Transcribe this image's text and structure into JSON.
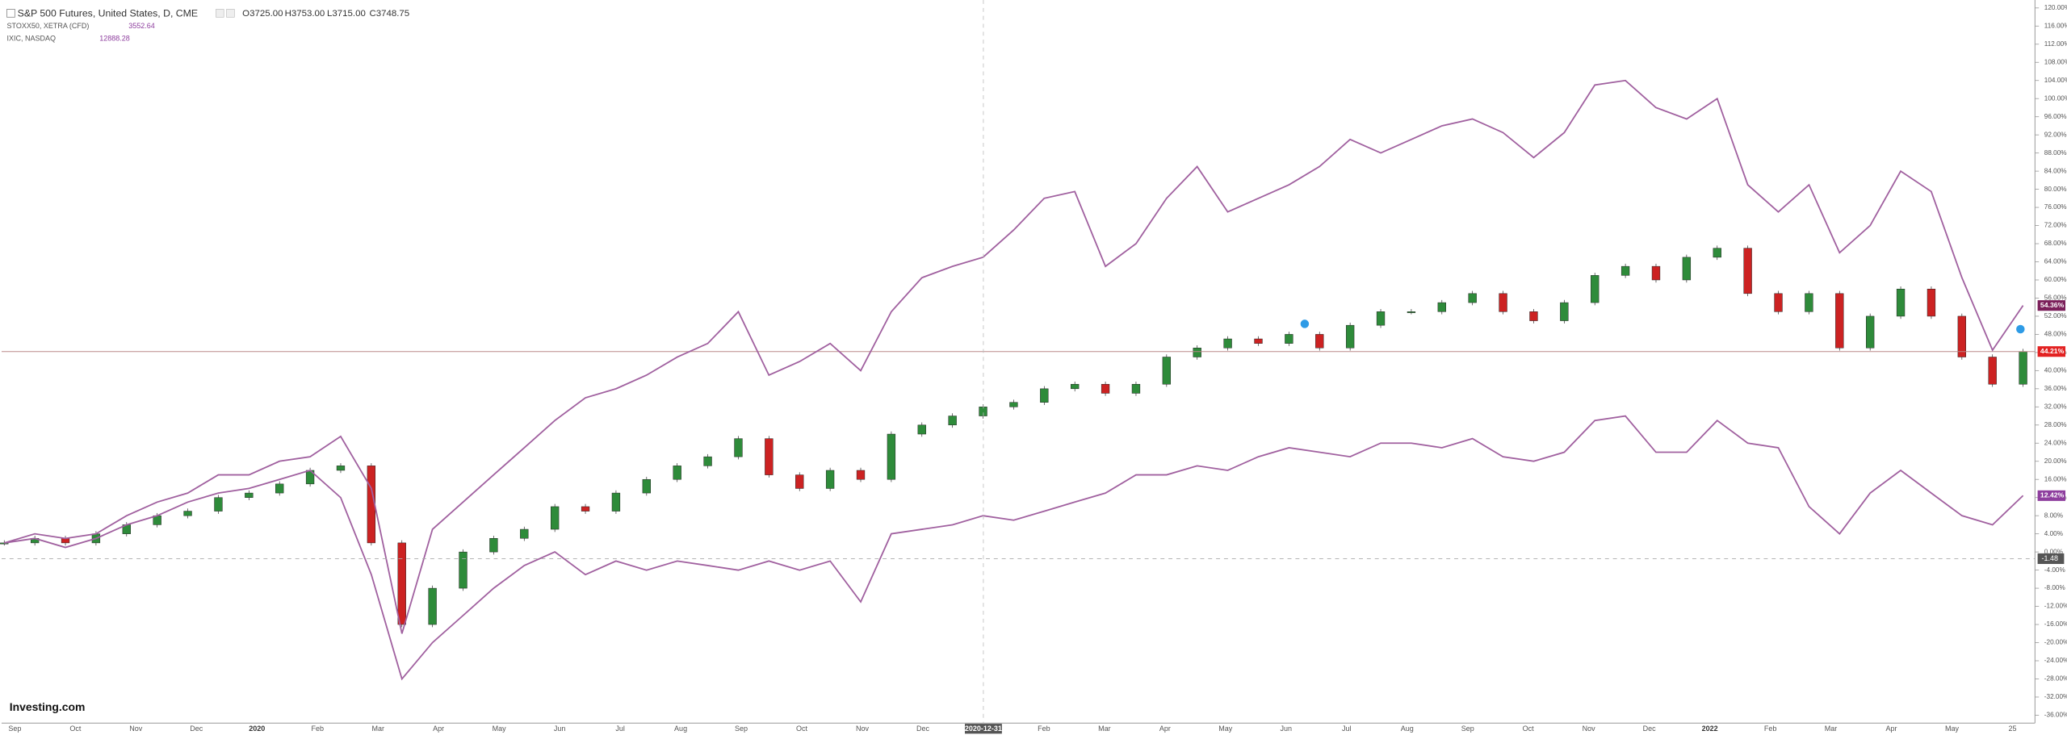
{
  "chart_data": {
    "type": "candle-compare",
    "brand": "Investing.com",
    "series": [
      {
        "name": "S&P 500 Futures, United States, D, CME",
        "style": "candles",
        "up_color": "#2e8b3a",
        "down_color": "#cc2222",
        "ohlc": [
          "O3725.00",
          "H3753.00",
          "L3715.00",
          "C3748.75"
        ],
        "last_label": "44.21%",
        "label_color": "#e32222",
        "values": [
          2,
          3,
          2,
          4,
          6,
          8,
          9,
          12,
          13,
          15,
          18,
          19,
          2,
          -16,
          -8,
          0,
          3,
          5,
          10,
          9,
          13,
          16,
          19,
          21,
          25,
          17,
          14,
          18,
          16,
          26,
          28,
          30,
          32,
          33,
          36,
          37,
          35,
          37,
          43,
          45,
          47,
          46,
          48,
          45,
          50,
          53,
          53,
          55,
          57,
          53,
          51,
          55,
          61,
          63,
          60,
          65,
          67,
          57,
          53,
          57,
          45,
          52,
          58,
          52,
          43,
          37,
          44.21
        ]
      },
      {
        "name": "STOXX50, XETRA (CFD)",
        "style": "line",
        "color": "#a0609f",
        "quote": "3552.64",
        "last_label": "12.42%",
        "label_color": "#8e3e9e",
        "values": [
          2,
          3,
          1,
          3,
          6,
          8,
          11,
          13,
          14,
          16,
          18,
          12,
          -5,
          -28,
          -20,
          -14,
          -8,
          -3,
          0,
          -5,
          -2,
          -4,
          -2,
          -3,
          -4,
          -2,
          -4,
          -2,
          -11,
          4,
          5,
          6,
          8,
          7,
          9,
          11,
          13,
          17,
          17,
          19,
          18,
          21,
          23,
          22,
          21,
          24,
          24,
          23,
          25,
          21,
          20,
          22,
          29,
          30,
          22,
          22,
          29,
          24,
          23,
          10,
          4,
          13,
          18,
          13,
          8,
          6,
          12.42
        ]
      },
      {
        "name": "IXIC, NASDAQ",
        "style": "line",
        "color": "#a0609f",
        "quote": "12888.28",
        "last_label": "54.36%",
        "label_color": "#7b1f5a",
        "values": [
          2,
          4,
          3,
          4,
          8,
          11,
          13,
          17,
          17,
          20,
          21,
          25.5,
          14,
          -18,
          5,
          11,
          17,
          23,
          29,
          34,
          36,
          39,
          43,
          46,
          53,
          39,
          42,
          46,
          40,
          53,
          60.5,
          63,
          65,
          71,
          78,
          79.5,
          63,
          68,
          78,
          85,
          75,
          78,
          81,
          85,
          91,
          88,
          91,
          94,
          95.5,
          92.5,
          87,
          92.5,
          103,
          104,
          98,
          95.5,
          100,
          81,
          75,
          81,
          66,
          72,
          84,
          79.5,
          60.5,
          44.5,
          54.36
        ]
      }
    ],
    "x_labels": [
      "Sep",
      "Oct",
      "Nov",
      "Dec",
      "2020",
      "Feb",
      "Mar",
      "Apr",
      "May",
      "Jun",
      "Jul",
      "Aug",
      "Sep",
      "Oct",
      "Nov",
      "Dec",
      "2020-12-31",
      "Feb",
      "Mar",
      "Apr",
      "May",
      "Jun",
      "Jul",
      "Aug",
      "Sep",
      "Oct",
      "Nov",
      "Dec",
      "2022",
      "Feb",
      "Mar",
      "Apr",
      "May",
      "25"
    ],
    "crosshair": {
      "y": -1.48,
      "y_label": "-1.48",
      "x_label": "2020-12-31"
    },
    "ylim": [
      -36,
      120
    ],
    "yticks": [
      {
        "value": 120,
        "label": "120.00%"
      },
      {
        "value": 116,
        "label": "116.00%"
      },
      {
        "value": 112,
        "label": "112.00%"
      },
      {
        "value": 108,
        "label": "108.00%"
      },
      {
        "value": 104,
        "label": "104.00%"
      },
      {
        "value": 100,
        "label": "100.00%"
      },
      {
        "value": 96,
        "label": "96.00%"
      },
      {
        "value": 92,
        "label": "92.00%"
      },
      {
        "value": 88,
        "label": "88.00%"
      },
      {
        "value": 84,
        "label": "84.00%"
      },
      {
        "value": 80,
        "label": "80.00%"
      },
      {
        "value": 76,
        "label": "76.00%"
      },
      {
        "value": 72,
        "label": "72.00%"
      },
      {
        "value": 68,
        "label": "68.00%"
      },
      {
        "value": 64,
        "label": "64.00%"
      },
      {
        "value": 60,
        "label": "60.00%"
      },
      {
        "value": 56,
        "label": "56.00%"
      },
      {
        "value": 52,
        "label": "52.00%"
      },
      {
        "value": 48,
        "label": "48.00%"
      },
      {
        "value": 44,
        "label": "44.00%"
      },
      {
        "value": 40,
        "label": "40.00%"
      },
      {
        "value": 36,
        "label": "36.00%"
      },
      {
        "value": 32,
        "label": "32.00%"
      },
      {
        "value": 28,
        "label": "28.00%"
      },
      {
        "value": 24,
        "label": "24.00%"
      },
      {
        "value": 20,
        "label": "20.00%"
      },
      {
        "value": 16,
        "label": "16.00%"
      },
      {
        "value": 12,
        "label": "12.00%"
      },
      {
        "value": 8,
        "label": "8.00%"
      },
      {
        "value": 4,
        "label": "4.00%"
      },
      {
        "value": 0,
        "label": "0.00%"
      },
      {
        "value": -4,
        "label": "-4.00%"
      },
      {
        "value": -8,
        "label": "-8.00%"
      },
      {
        "value": -12,
        "label": "-12.00%"
      },
      {
        "value": -16,
        "label": "-16.00%"
      },
      {
        "value": -20,
        "label": "-20.00%"
      },
      {
        "value": -24,
        "label": "-24.00%"
      },
      {
        "value": -28,
        "label": "-28.00%"
      },
      {
        "value": -32,
        "label": "-32.00%"
      },
      {
        "value": -36,
        "label": "-36.00%"
      }
    ]
  }
}
